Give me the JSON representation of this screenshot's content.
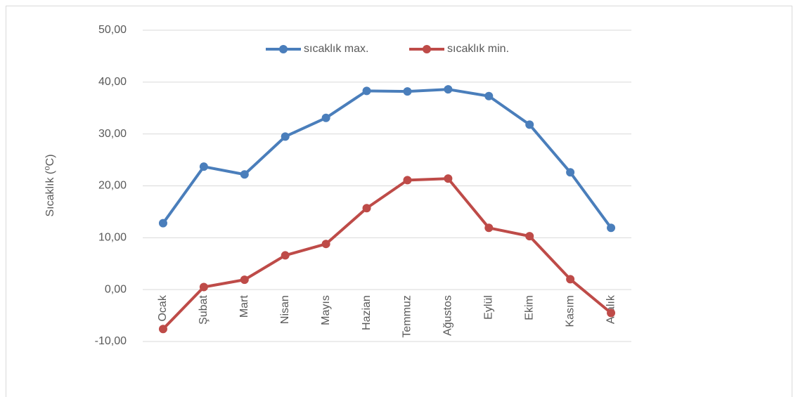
{
  "chart_data": {
    "type": "line",
    "y_label": "Sıcaklık (⁰C)",
    "categories": [
      "Ocak",
      "Şubat",
      "Mart",
      "Nisan",
      "Mayıs",
      "Hazian",
      "Temmuz",
      "Ağustos",
      "Eylül",
      "Ekim",
      "Kasım",
      "Aralık"
    ],
    "series": [
      {
        "name": "sıcaklık max.",
        "color": "#4a7ebb",
        "values": [
          12.8,
          23.7,
          22.2,
          29.5,
          33.1,
          38.3,
          38.2,
          38.6,
          37.3,
          31.8,
          22.6,
          11.9
        ]
      },
      {
        "name": "sıcaklık min.",
        "color": "#be4b48",
        "values": [
          -7.6,
          0.5,
          1.9,
          6.6,
          8.8,
          15.7,
          21.1,
          21.4,
          11.9,
          10.3,
          2.0,
          -4.5
        ]
      }
    ],
    "ylim": [
      -10,
      50
    ],
    "yticks": [
      {
        "value": -10,
        "label": "-10,00"
      },
      {
        "value": 0,
        "label": "0,00"
      },
      {
        "value": 10,
        "label": "10,00"
      },
      {
        "value": 20,
        "label": "20,00"
      },
      {
        "value": 30,
        "label": "30,00"
      },
      {
        "value": 40,
        "label": "40,00"
      },
      {
        "value": 50,
        "label": "50,00"
      }
    ],
    "grid": true,
    "legend": "top"
  }
}
